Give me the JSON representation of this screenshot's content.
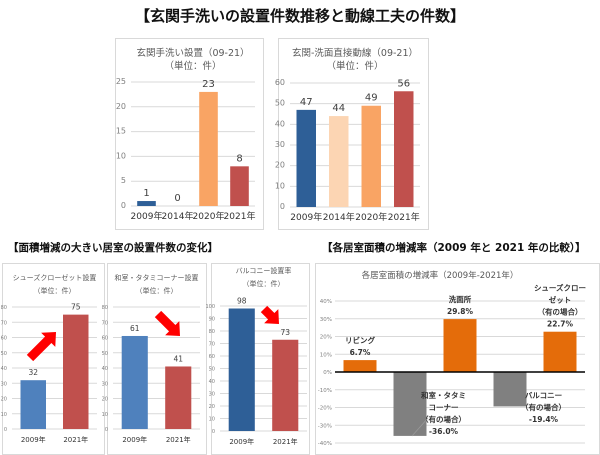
{
  "headings": {
    "main": "【玄関手洗いの設置件数推移と動線工夫の件数】",
    "left": "【面積増減の大きい居室の設置件数の変化】",
    "right": "【各居室面積の増減率（2009 年と 2021 年の比較）】"
  },
  "chart_data": [
    {
      "type": "bar",
      "title": "玄関手洗い設置（09-21）",
      "subtitle": "（単位：件）",
      "categories": [
        "2009年",
        "2014年",
        "2020年",
        "2021年"
      ],
      "values": [
        1,
        0,
        23,
        8
      ],
      "colors": [
        "#2e5f97",
        "#fcc9a0",
        "#f9a464",
        "#c0504d"
      ],
      "ylim": [
        0,
        25
      ],
      "yticks": [
        0,
        5,
        10,
        15,
        20,
        25
      ],
      "grid": true
    },
    {
      "type": "bar",
      "title": "玄関-洗面直接動線（09-21）",
      "subtitle": "（単位：件）",
      "categories": [
        "2009年",
        "2014年",
        "2020年",
        "2021年"
      ],
      "values": [
        47,
        44,
        49,
        56
      ],
      "colors": [
        "#2e5f97",
        "#fcd5b3",
        "#f9a464",
        "#c0504d"
      ],
      "ylim": [
        0,
        60
      ],
      "yticks": [
        0,
        10,
        20,
        30,
        40,
        50,
        60
      ],
      "grid": true
    },
    {
      "type": "bar",
      "title": "シューズクローゼット設置",
      "subtitle": "（単位：件）",
      "categories": [
        "2009年",
        "2021年"
      ],
      "values": [
        32,
        75
      ],
      "colors": [
        "#4f81bd",
        "#c0504d"
      ],
      "ylim": [
        0,
        80
      ],
      "yticks": [
        0,
        10,
        20,
        30,
        40,
        50,
        60,
        70,
        80
      ],
      "grid": true,
      "arrow": "up"
    },
    {
      "type": "bar",
      "title": "和室・タタミコーナー設置",
      "subtitle": "（単位：件）",
      "categories": [
        "2009年",
        "2021年"
      ],
      "values": [
        61,
        41
      ],
      "colors": [
        "#4f81bd",
        "#c0504d"
      ],
      "ylim": [
        0,
        80
      ],
      "yticks": [
        0,
        10,
        20,
        30,
        40,
        50,
        60,
        70,
        80
      ],
      "grid": true,
      "arrow": "down"
    },
    {
      "type": "bar",
      "title": "バルコニー設置率",
      "subtitle": "（単位：件）",
      "categories": [
        "2009年",
        "2021年"
      ],
      "values": [
        98,
        73
      ],
      "colors": [
        "#2e5f97",
        "#c0504d"
      ],
      "ylim": [
        0,
        100
      ],
      "yticks": [
        0,
        10,
        20,
        30,
        40,
        50,
        60,
        70,
        80,
        90,
        100
      ],
      "grid": true,
      "arrow": "down"
    },
    {
      "type": "bar",
      "title": "各居室面積の増減率（2009年-2021年）",
      "categories": [
        "リビング",
        "和室・タタミコーナー（有の場合）",
        "洗面所",
        "バルコニー（有の場合）",
        "シューズクローゼット（有の場合）"
      ],
      "labels": [
        [
          "リビング",
          "6.7%"
        ],
        [
          "和室・タタミ",
          "コーナー",
          "（有の場合）",
          "-36.0%"
        ],
        [
          "洗面所",
          "29.8%"
        ],
        [
          "バルコニー",
          "（有の場合）",
          "-19.4%"
        ],
        [
          "シューズクロー",
          "ゼット",
          "（有の場合）",
          "22.7%"
        ]
      ],
      "values": [
        6.7,
        -36.0,
        29.8,
        -19.4,
        22.7
      ],
      "colors": {
        "positive": "#e46c0a",
        "negative": "#808080"
      },
      "ylim": [
        -40,
        40
      ],
      "yticks": [
        "-40%",
        "-30%",
        "-20%",
        "-10%",
        "0%",
        "10%",
        "20%",
        "30%",
        "40%"
      ],
      "grid": true
    }
  ]
}
